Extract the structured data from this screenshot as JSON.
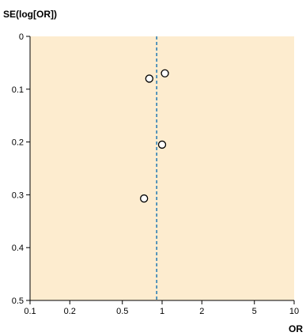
{
  "chart_data": {
    "type": "scatter",
    "subtype": "funnel-plot",
    "title": "",
    "xlabel": "OR",
    "ylabel": "SE(log[OR])",
    "x_scale": "log",
    "xlim": [
      0.1,
      10
    ],
    "ylim": [
      0,
      0.5
    ],
    "y_inverted": true,
    "x_ticks": [
      0.1,
      0.2,
      0.5,
      1,
      2,
      5,
      10
    ],
    "x_tick_labels": [
      "0.1",
      "0.2",
      "0.5",
      "1",
      "2",
      "5",
      "10"
    ],
    "y_ticks": [
      0,
      0.1,
      0.2,
      0.3,
      0.4,
      0.5
    ],
    "y_tick_labels": [
      "0",
      "0.1",
      "0.2",
      "0.3",
      "0.4",
      "0.5"
    ],
    "grid": false,
    "reference_line": {
      "x": 0.91,
      "style": "dashed",
      "color": "#1f78b4"
    },
    "points": [
      {
        "x": 1.05,
        "y": 0.07
      },
      {
        "x": 0.8,
        "y": 0.08
      },
      {
        "x": 1.0,
        "y": 0.205
      },
      {
        "x": 0.73,
        "y": 0.307
      }
    ],
    "colors": {
      "plot_background": "#fdeccf",
      "axis": "#000000",
      "marker_fill": "#ffffff",
      "marker_stroke": "#000000"
    }
  }
}
